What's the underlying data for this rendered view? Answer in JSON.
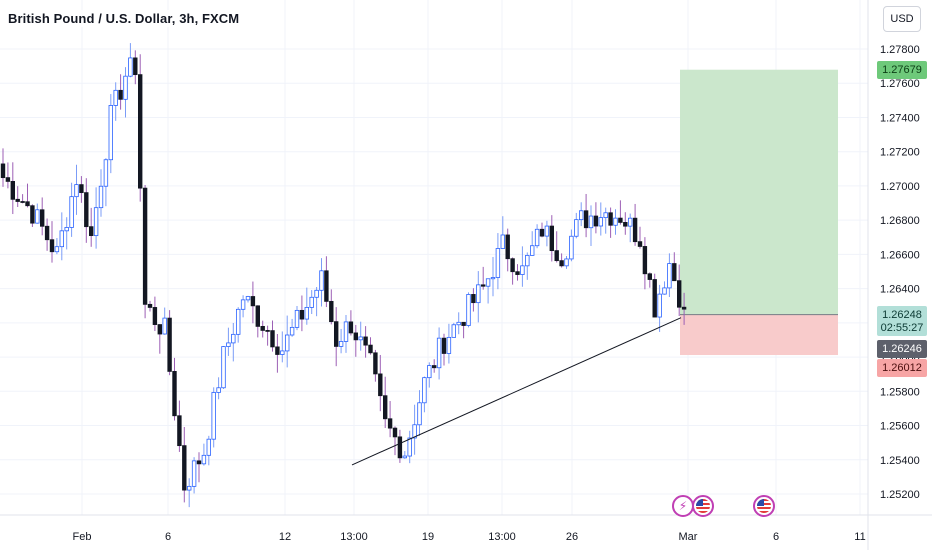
{
  "header": {
    "title": "British Pound / U.S. Dollar, 3h, FXCM",
    "currency": "USD"
  },
  "price_labels": {
    "target": "1.27679",
    "entry": "1.26248",
    "countdown": "02:55:27",
    "last": "1.26246",
    "stop": "1.26012"
  },
  "colors": {
    "up_candle": "#2962ff",
    "down_candle": "#131722",
    "profit_zone": "#c8e6c9",
    "loss_zone": "#f8c8c8",
    "trendline": "#131722"
  },
  "event_icons": [
    "flash-icon",
    "us-flag-icon",
    "us-flag-icon"
  ],
  "chart_data": {
    "type": "candlestick",
    "title": "British Pound / U.S. Dollar, 3h, FXCM",
    "ylim": [
      1.2515,
      1.2795
    ],
    "y_ticks": [
      "1.27800",
      "1.27600",
      "1.27400",
      "1.27200",
      "1.27000",
      "1.26800",
      "1.26600",
      "1.26400",
      "1.26200",
      "1.26000",
      "1.25800",
      "1.25600",
      "1.25400",
      "1.25200"
    ],
    "x_ticks": [
      "Feb",
      "6",
      "12",
      "13:00",
      "19",
      "13:00",
      "26",
      "Mar",
      "6",
      "11"
    ],
    "grid": true,
    "waypoints": [
      [
        0,
        1.2705
      ],
      [
        6,
        1.2685
      ],
      [
        11,
        1.266
      ],
      [
        15,
        1.2705
      ],
      [
        18,
        1.267
      ],
      [
        22,
        1.274
      ],
      [
        25,
        1.2765
      ],
      [
        27,
        1.277
      ],
      [
        29,
        1.263
      ],
      [
        33,
        1.2615
      ],
      [
        37,
        1.2525
      ],
      [
        41,
        1.2545
      ],
      [
        45,
        1.26
      ],
      [
        49,
        1.2635
      ],
      [
        53,
        1.262
      ],
      [
        57,
        1.2605
      ],
      [
        61,
        1.2625
      ],
      [
        65,
        1.2645
      ],
      [
        68,
        1.261
      ],
      [
        71,
        1.262
      ],
      [
        75,
        1.2595
      ],
      [
        78,
        1.256
      ],
      [
        82,
        1.2545
      ],
      [
        86,
        1.2585
      ],
      [
        90,
        1.261
      ],
      [
        94,
        1.2625
      ],
      [
        98,
        1.264
      ],
      [
        102,
        1.2665
      ],
      [
        106,
        1.265
      ],
      [
        110,
        1.2675
      ],
      [
        114,
        1.266
      ],
      [
        118,
        1.268
      ],
      [
        122,
        1.2685
      ],
      [
        126,
        1.2683
      ],
      [
        130,
        1.267
      ],
      [
        133,
        1.263
      ],
      [
        136,
        1.2655
      ],
      [
        139,
        1.2628
      ]
    ],
    "trendline": {
      "from": [
        1.2537,
        "13:00"
      ],
      "to": [
        1.2623,
        "Mar"
      ]
    },
    "position": {
      "entry": 1.26248,
      "target": 1.27679,
      "stop": 1.26012
    }
  }
}
